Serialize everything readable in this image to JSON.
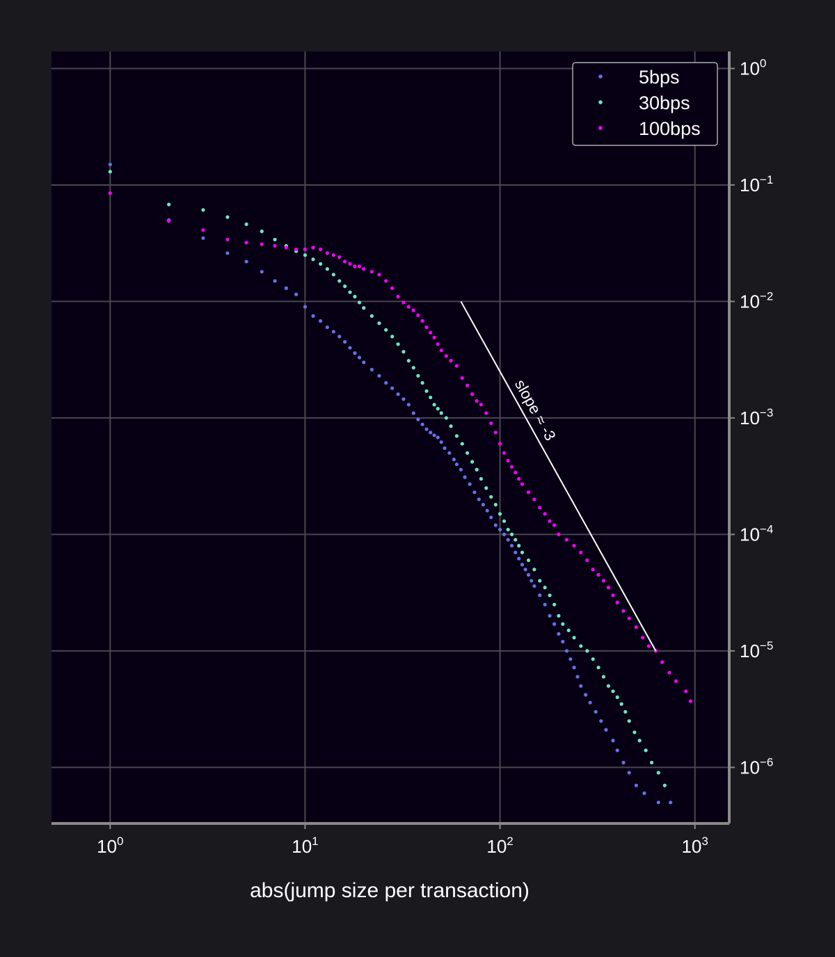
{
  "chart_data": {
    "type": "scatter",
    "xlabel": "abs(jump size per transaction)",
    "ylabel": "",
    "xscale": "log",
    "yscale": "log",
    "xlim": [
      0.5,
      1500
    ],
    "ylim": [
      3.3e-07,
      1.4
    ],
    "grid": true,
    "legend_position": "top-right",
    "x_ticks": [
      {
        "value": 1,
        "base": "10",
        "exp": "0"
      },
      {
        "value": 10,
        "base": "10",
        "exp": "1"
      },
      {
        "value": 100,
        "base": "10",
        "exp": "2"
      },
      {
        "value": 1000,
        "base": "10",
        "exp": "3"
      }
    ],
    "y_ticks": [
      {
        "value": 1,
        "base": "10",
        "exp": "0"
      },
      {
        "value": 0.1,
        "base": "10",
        "exp": "−1"
      },
      {
        "value": 0.01,
        "base": "10",
        "exp": "−2"
      },
      {
        "value": 0.001,
        "base": "10",
        "exp": "−3"
      },
      {
        "value": 0.0001,
        "base": "10",
        "exp": "−4"
      },
      {
        "value": 1e-05,
        "base": "10",
        "exp": "−5"
      },
      {
        "value": 1e-06,
        "base": "10",
        "exp": "−6"
      }
    ],
    "annotation": {
      "text": "slope ≈ -3",
      "line": [
        [
          63,
          0.01
        ],
        [
          630,
          1e-05
        ]
      ]
    },
    "colors": {
      "background": "#1a191e",
      "plot_background": "#070015",
      "grid": "#4a4750",
      "spine": "#8a8a8a"
    },
    "series": [
      {
        "name": "5bps",
        "color": "#6a6fe6",
        "points": [
          [
            1,
            0.15
          ],
          [
            2,
            0.05
          ],
          [
            3,
            0.035
          ],
          [
            4,
            0.026
          ],
          [
            5,
            0.022
          ],
          [
            6,
            0.018
          ],
          [
            7,
            0.015
          ],
          [
            8,
            0.013
          ],
          [
            9,
            0.0115
          ],
          [
            10,
            0.009
          ],
          [
            11,
            0.0075
          ],
          [
            12,
            0.0068
          ],
          [
            13,
            0.006
          ],
          [
            14,
            0.0055
          ],
          [
            15,
            0.005
          ],
          [
            16,
            0.0045
          ],
          [
            17,
            0.004
          ],
          [
            18,
            0.0036
          ],
          [
            19,
            0.0033
          ],
          [
            20,
            0.003
          ],
          [
            22,
            0.0026
          ],
          [
            24,
            0.0023
          ],
          [
            26,
            0.002
          ],
          [
            28,
            0.0018
          ],
          [
            30,
            0.0016
          ],
          [
            32,
            0.00145
          ],
          [
            34,
            0.0013
          ],
          [
            36,
            0.0011
          ],
          [
            38,
            0.00097
          ],
          [
            40,
            0.00088
          ],
          [
            42,
            0.0008
          ],
          [
            44,
            0.00075
          ],
          [
            46,
            0.00071
          ],
          [
            48,
            0.00068
          ],
          [
            50,
            0.00062
          ],
          [
            52,
            0.00055
          ],
          [
            55,
            0.0005
          ],
          [
            58,
            0.00044
          ],
          [
            60,
            0.0004
          ],
          [
            63,
            0.00036
          ],
          [
            66,
            0.00031
          ],
          [
            70,
            0.00027
          ],
          [
            74,
            0.00023
          ],
          [
            78,
            0.0002
          ],
          [
            82,
            0.00018
          ],
          [
            86,
            0.00016
          ],
          [
            90,
            0.00014
          ],
          [
            95,
            0.00012
          ],
          [
            100,
            0.00011
          ],
          [
            105,
            0.0001
          ],
          [
            110,
            9e-05
          ],
          [
            115,
            8e-05
          ],
          [
            120,
            7e-05
          ],
          [
            125,
            6.2e-05
          ],
          [
            130,
            5.5e-05
          ],
          [
            135,
            5e-05
          ],
          [
            140,
            4.5e-05
          ],
          [
            145,
            4e-05
          ],
          [
            150,
            3.6e-05
          ],
          [
            160,
            3e-05
          ],
          [
            170,
            2.5e-05
          ],
          [
            180,
            2e-05
          ],
          [
            190,
            1.7e-05
          ],
          [
            200,
            1.4e-05
          ],
          [
            210,
            1.2e-05
          ],
          [
            220,
            1e-05
          ],
          [
            230,
            8.5e-06
          ],
          [
            240,
            7.2e-06
          ],
          [
            250,
            6e-06
          ],
          [
            260,
            5e-06
          ],
          [
            275,
            4.2e-06
          ],
          [
            290,
            3.6e-06
          ],
          [
            310,
            3e-06
          ],
          [
            330,
            2.5e-06
          ],
          [
            350,
            2.1e-06
          ],
          [
            380,
            1.7e-06
          ],
          [
            400,
            1.4e-06
          ],
          [
            430,
            1.1e-06
          ],
          [
            460,
            9e-07
          ],
          [
            500,
            7e-07
          ],
          [
            550,
            6e-07
          ],
          [
            650,
            5e-07
          ],
          [
            750,
            5e-07
          ]
        ]
      },
      {
        "name": "30bps",
        "color": "#6ee8c0",
        "points": [
          [
            1,
            0.13
          ],
          [
            2,
            0.068
          ],
          [
            3,
            0.061
          ],
          [
            4,
            0.053
          ],
          [
            5,
            0.046
          ],
          [
            6,
            0.04
          ],
          [
            7,
            0.034
          ],
          [
            8,
            0.03
          ],
          [
            9,
            0.027
          ],
          [
            10,
            0.025
          ],
          [
            11,
            0.023
          ],
          [
            12,
            0.021
          ],
          [
            13,
            0.019
          ],
          [
            14,
            0.017
          ],
          [
            15,
            0.015
          ],
          [
            16,
            0.0135
          ],
          [
            17,
            0.012
          ],
          [
            18,
            0.011
          ],
          [
            19,
            0.0098
          ],
          [
            20,
            0.0088
          ],
          [
            22,
            0.0075
          ],
          [
            24,
            0.0065
          ],
          [
            26,
            0.0057
          ],
          [
            28,
            0.005
          ],
          [
            30,
            0.0043
          ],
          [
            32,
            0.0037
          ],
          [
            34,
            0.0031
          ],
          [
            36,
            0.0027
          ],
          [
            38,
            0.0023
          ],
          [
            40,
            0.002
          ],
          [
            42,
            0.0017
          ],
          [
            44,
            0.0015
          ],
          [
            46,
            0.0013
          ],
          [
            48,
            0.0012
          ],
          [
            50,
            0.0011
          ],
          [
            53,
            0.001
          ],
          [
            56,
            0.00085
          ],
          [
            60,
            0.0007
          ],
          [
            64,
            0.0006
          ],
          [
            68,
            0.0005
          ],
          [
            72,
            0.00042
          ],
          [
            76,
            0.00036
          ],
          [
            80,
            0.0003
          ],
          [
            85,
            0.00025
          ],
          [
            90,
            0.00021
          ],
          [
            95,
            0.00018
          ],
          [
            100,
            0.00015
          ],
          [
            105,
            0.00013
          ],
          [
            110,
            0.00011
          ],
          [
            115,
            0.0001
          ],
          [
            120,
            9e-05
          ],
          [
            125,
            8e-05
          ],
          [
            130,
            7e-05
          ],
          [
            140,
            6e-05
          ],
          [
            150,
            5e-05
          ],
          [
            160,
            4e-05
          ],
          [
            170,
            3.5e-05
          ],
          [
            180,
            3e-05
          ],
          [
            190,
            2.5e-05
          ],
          [
            200,
            2e-05
          ],
          [
            210,
            1.7e-05
          ],
          [
            225,
            1.5e-05
          ],
          [
            240,
            1.3e-05
          ],
          [
            260,
            1.1e-05
          ],
          [
            280,
            1e-05
          ],
          [
            300,
            8.5e-06
          ],
          [
            320,
            7.2e-06
          ],
          [
            340,
            6e-06
          ],
          [
            360,
            5e-06
          ],
          [
            380,
            4.5e-06
          ],
          [
            400,
            4e-06
          ],
          [
            420,
            3.5e-06
          ],
          [
            440,
            3e-06
          ],
          [
            460,
            2.5e-06
          ],
          [
            490,
            2e-06
          ],
          [
            520,
            1.7e-06
          ],
          [
            560,
            1.4e-06
          ],
          [
            600,
            1.1e-06
          ],
          [
            650,
            9e-07
          ],
          [
            700,
            7e-07
          ]
        ]
      },
      {
        "name": "100bps",
        "color": "#ff00ff",
        "points": [
          [
            1,
            0.085
          ],
          [
            2,
            0.049
          ],
          [
            3,
            0.041
          ],
          [
            4,
            0.034
          ],
          [
            5,
            0.032
          ],
          [
            6,
            0.031
          ],
          [
            7,
            0.03
          ],
          [
            8,
            0.029
          ],
          [
            9,
            0.028
          ],
          [
            10,
            0.028
          ],
          [
            11,
            0.029
          ],
          [
            12,
            0.028
          ],
          [
            13,
            0.026
          ],
          [
            14,
            0.025
          ],
          [
            15,
            0.024
          ],
          [
            16,
            0.022
          ],
          [
            17,
            0.021
          ],
          [
            18,
            0.02
          ],
          [
            19,
            0.02
          ],
          [
            20,
            0.019
          ],
          [
            22,
            0.018
          ],
          [
            24,
            0.017
          ],
          [
            26,
            0.015
          ],
          [
            28,
            0.013
          ],
          [
            30,
            0.011
          ],
          [
            32,
            0.0098
          ],
          [
            34,
            0.009
          ],
          [
            36,
            0.0084
          ],
          [
            38,
            0.0076
          ],
          [
            40,
            0.0068
          ],
          [
            42,
            0.006
          ],
          [
            44,
            0.0054
          ],
          [
            46,
            0.0049
          ],
          [
            48,
            0.0043
          ],
          [
            50,
            0.0038
          ],
          [
            53,
            0.0034
          ],
          [
            56,
            0.0031
          ],
          [
            60,
            0.0028
          ],
          [
            64,
            0.0022
          ],
          [
            68,
            0.0019
          ],
          [
            72,
            0.0016
          ],
          [
            76,
            0.0014
          ],
          [
            80,
            0.0013
          ],
          [
            85,
            0.0011
          ],
          [
            90,
            0.0009
          ],
          [
            95,
            0.00075
          ],
          [
            100,
            0.0006
          ],
          [
            105,
            0.0005
          ],
          [
            110,
            0.00043
          ],
          [
            115,
            0.00038
          ],
          [
            120,
            0.00034
          ],
          [
            125,
            0.0003
          ],
          [
            130,
            0.00027
          ],
          [
            140,
            0.00023
          ],
          [
            150,
            0.0002
          ],
          [
            160,
            0.00017
          ],
          [
            170,
            0.00015
          ],
          [
            180,
            0.00013
          ],
          [
            190,
            0.00012
          ],
          [
            200,
            0.0001
          ],
          [
            220,
            9e-05
          ],
          [
            240,
            8e-05
          ],
          [
            260,
            7e-05
          ],
          [
            280,
            6e-05
          ],
          [
            300,
            5e-05
          ],
          [
            320,
            4.5e-05
          ],
          [
            340,
            4e-05
          ],
          [
            360,
            3.5e-05
          ],
          [
            380,
            3e-05
          ],
          [
            400,
            2.6e-05
          ],
          [
            430,
            2.2e-05
          ],
          [
            460,
            1.9e-05
          ],
          [
            500,
            1.6e-05
          ],
          [
            540,
            1.3e-05
          ],
          [
            580,
            1.1e-05
          ],
          [
            630,
            1e-05
          ],
          [
            680,
            8e-06
          ],
          [
            740,
            6.5e-06
          ],
          [
            800,
            5.5e-06
          ],
          [
            900,
            4.5e-06
          ],
          [
            950,
            3.7e-06
          ]
        ]
      }
    ]
  }
}
